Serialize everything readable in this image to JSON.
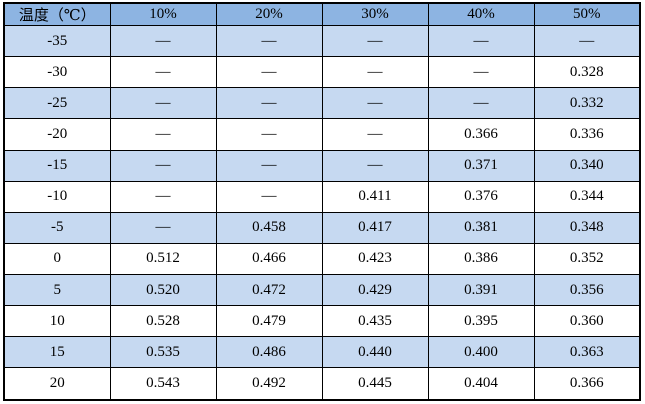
{
  "colors": {
    "header_bg": "#8DB4E2",
    "alt_row_bg": "#C6D9F1",
    "row_bg": "#FFFFFF",
    "border": "#000000",
    "text": "#000000"
  },
  "chart_data": {
    "type": "table",
    "title": "",
    "columns": [
      "温度（℃）",
      "10%",
      "20%",
      "30%",
      "40%",
      "50%"
    ],
    "rows": [
      [
        "-35",
        "—",
        "—",
        "—",
        "—",
        "—"
      ],
      [
        "-30",
        "—",
        "—",
        "—",
        "—",
        "0.328"
      ],
      [
        "-25",
        "—",
        "—",
        "—",
        "—",
        "0.332"
      ],
      [
        "-20",
        "—",
        "—",
        "—",
        "0.366",
        "0.336"
      ],
      [
        "-15",
        "—",
        "—",
        "—",
        "0.371",
        "0.340"
      ],
      [
        "-10",
        "—",
        "—",
        "0.411",
        "0.376",
        "0.344"
      ],
      [
        "-5",
        "—",
        "0.458",
        "0.417",
        "0.381",
        "0.348"
      ],
      [
        "0",
        "0.512",
        "0.466",
        "0.423",
        "0.386",
        "0.352"
      ],
      [
        "5",
        "0.520",
        "0.472",
        "0.429",
        "0.391",
        "0.356"
      ],
      [
        "10",
        "0.528",
        "0.479",
        "0.435",
        "0.395",
        "0.360"
      ],
      [
        "15",
        "0.535",
        "0.486",
        "0.440",
        "0.400",
        "0.363"
      ],
      [
        "20",
        "0.543",
        "0.492",
        "0.445",
        "0.404",
        "0.366"
      ]
    ]
  }
}
